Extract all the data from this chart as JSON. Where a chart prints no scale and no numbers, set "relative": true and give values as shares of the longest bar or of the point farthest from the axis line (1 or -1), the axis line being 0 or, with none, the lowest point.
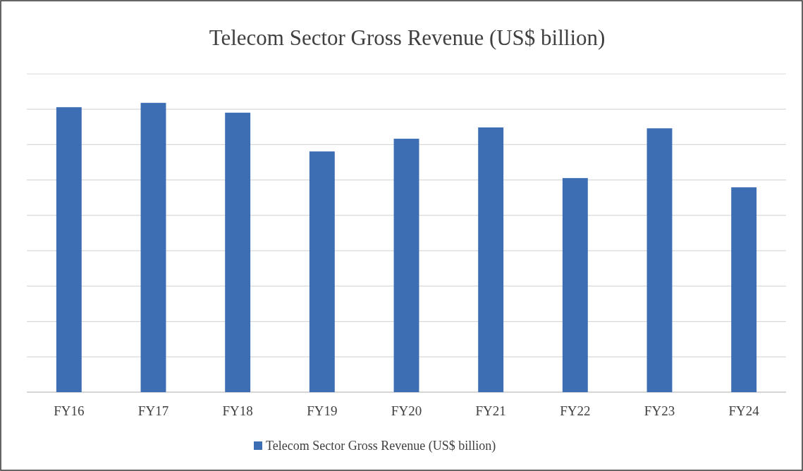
{
  "chart_data": {
    "type": "bar",
    "title": "Telecom Sector Gross Revenue (US$ billion)",
    "categories": [
      "FY16",
      "FY17",
      "FY18",
      "FY19",
      "FY20",
      "FY21",
      "FY22",
      "FY23",
      "FY24"
    ],
    "series": [
      {
        "name": "Telecom Sector Gross Revenue (US$ billion)",
        "color": "#3d6eb4",
        "values": [
          0.985,
          1,
          0.966,
          0.832,
          0.876,
          0.915,
          0.74,
          0.912,
          0.708
        ]
      }
    ],
    "relative": true,
    "grid": "y",
    "legend": "bottom"
  }
}
